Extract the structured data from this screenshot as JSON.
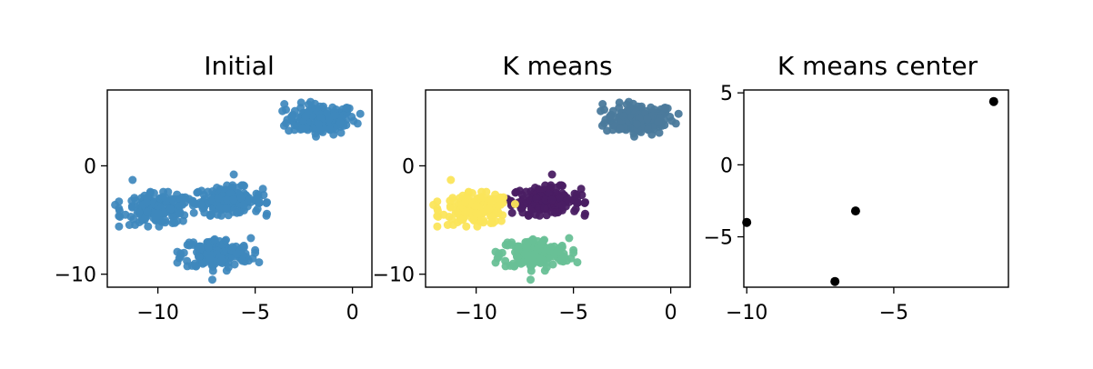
{
  "figure": {
    "background": "#ffffff"
  },
  "chart_data": [
    {
      "type": "scatter",
      "title": "Initial",
      "xlabel": "",
      "ylabel": "",
      "xlim": [
        -12.6,
        1.0
      ],
      "ylim": [
        -11.2,
        7.0
      ],
      "xticks": [
        -10,
        -5,
        0
      ],
      "xtick_labels": [
        "−10",
        "−5",
        "0"
      ],
      "yticks": [
        0,
        -10
      ],
      "ytick_labels": [
        "0",
        "−10"
      ],
      "grid": false,
      "legend": "none",
      "point_style": {
        "radius": 4.5,
        "opacity": 0.92
      },
      "clusters": [
        {
          "center": [
            -1.6,
            4.3
          ],
          "spread": [
            1.0,
            0.8
          ],
          "count": 170,
          "color": "#3e88bd"
        },
        {
          "center": [
            -6.4,
            -3.2
          ],
          "spread": [
            1.0,
            0.7
          ],
          "count": 180,
          "color": "#3e88bd"
        },
        {
          "center": [
            -10.0,
            -4.0
          ],
          "spread": [
            1.0,
            0.8
          ],
          "count": 170,
          "color": "#3e88bd"
        },
        {
          "center": [
            -7.0,
            -8.1
          ],
          "spread": [
            1.0,
            0.8
          ],
          "count": 170,
          "color": "#3e88bd"
        }
      ],
      "outliers": [
        {
          "x": -3.5,
          "y": 5.7,
          "color": "#3e88bd"
        },
        {
          "x": 0.4,
          "y": 4.8,
          "color": "#3e88bd"
        },
        {
          "x": -11.3,
          "y": -1.3,
          "color": "#3e88bd"
        },
        {
          "x": -6.1,
          "y": -0.8,
          "color": "#3e88bd"
        },
        {
          "x": -12.2,
          "y": -3.6,
          "color": "#3e88bd"
        },
        {
          "x": -7.2,
          "y": -10.5,
          "color": "#3e88bd"
        },
        {
          "x": -4.8,
          "y": -8.9,
          "color": "#3e88bd"
        }
      ]
    },
    {
      "type": "scatter",
      "title": "K means",
      "xlabel": "",
      "ylabel": "",
      "xlim": [
        -12.6,
        1.0
      ],
      "ylim": [
        -11.2,
        7.0
      ],
      "xticks": [
        -10,
        -5,
        0
      ],
      "xtick_labels": [
        "−10",
        "−5",
        "0"
      ],
      "yticks": [
        0,
        -10
      ],
      "ytick_labels": [
        "0",
        "−10"
      ],
      "grid": false,
      "legend": "none",
      "point_style": {
        "radius": 4.5,
        "opacity": 0.95
      },
      "clusters": [
        {
          "center": [
            -1.6,
            4.3
          ],
          "spread": [
            1.0,
            0.8
          ],
          "count": 170,
          "color": "#4b7a9c"
        },
        {
          "center": [
            -6.4,
            -3.2
          ],
          "spread": [
            1.0,
            0.7
          ],
          "count": 180,
          "color": "#4a1d63"
        },
        {
          "center": [
            -10.0,
            -4.0
          ],
          "spread": [
            1.0,
            0.8
          ],
          "count": 170,
          "color": "#fbe55b"
        },
        {
          "center": [
            -7.0,
            -8.1
          ],
          "spread": [
            1.0,
            0.8
          ],
          "count": 170,
          "color": "#68c096"
        }
      ],
      "outliers": [
        {
          "x": -3.5,
          "y": 5.7,
          "color": "#4b7a9c"
        },
        {
          "x": 0.4,
          "y": 4.8,
          "color": "#4b7a9c"
        },
        {
          "x": -11.3,
          "y": -1.3,
          "color": "#fbe55b"
        },
        {
          "x": -6.1,
          "y": -0.8,
          "color": "#4a1d63"
        },
        {
          "x": -12.2,
          "y": -3.6,
          "color": "#fbe55b"
        },
        {
          "x": -7.2,
          "y": -10.5,
          "color": "#68c096"
        },
        {
          "x": -4.8,
          "y": -8.9,
          "color": "#68c096"
        }
      ]
    },
    {
      "type": "scatter",
      "title": "K means center",
      "xlabel": "",
      "ylabel": "",
      "xlim": [
        -10.1,
        -1.1
      ],
      "ylim": [
        -8.5,
        5.2
      ],
      "xticks": [
        -10,
        -5
      ],
      "xtick_labels": [
        "−10",
        "−5"
      ],
      "yticks": [
        5,
        0,
        -5
      ],
      "ytick_labels": [
        "5",
        "0",
        "−5"
      ],
      "grid": false,
      "legend": "none",
      "point_style": {
        "radius": 5,
        "opacity": 1
      },
      "points": [
        {
          "x": -1.6,
          "y": 4.4,
          "color": "#000000"
        },
        {
          "x": -10.0,
          "y": -4.0,
          "color": "#000000"
        },
        {
          "x": -6.3,
          "y": -3.2,
          "color": "#000000"
        },
        {
          "x": -7.0,
          "y": -8.1,
          "color": "#000000"
        }
      ]
    }
  ]
}
